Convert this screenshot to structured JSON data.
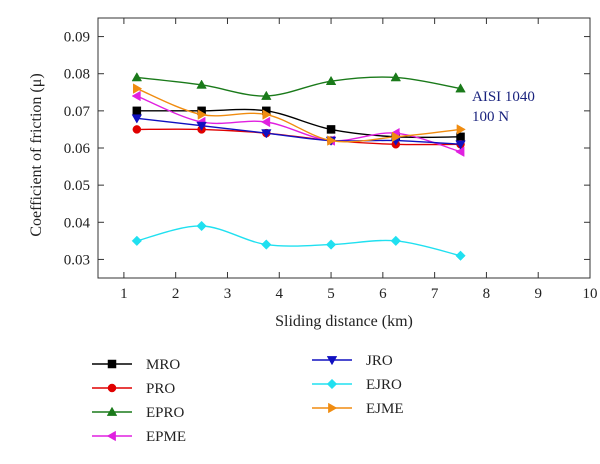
{
  "chart_data": {
    "type": "line",
    "xlabel": "Sliding distance (km)",
    "ylabel": "Coefficient of friction (μ)",
    "xlim": [
      0.5,
      10
    ],
    "ylim": [
      0.025,
      0.095
    ],
    "xticks": [
      1,
      2,
      3,
      4,
      5,
      6,
      7,
      8,
      9,
      10
    ],
    "yticks": [
      0.03,
      0.04,
      0.05,
      0.06,
      0.07,
      0.08,
      0.09
    ],
    "ytick_labels": [
      "0.03",
      "0.04",
      "0.05",
      "0.06",
      "0.07",
      "0.08",
      "0.09"
    ],
    "x": [
      1.25,
      2.5,
      3.75,
      5,
      6.25,
      7.5
    ],
    "series": [
      {
        "name": "MRO",
        "color": "#000000",
        "marker": "square",
        "values": [
          0.07,
          0.07,
          0.07,
          0.065,
          0.063,
          0.063
        ]
      },
      {
        "name": "PRO",
        "color": "#e00000",
        "marker": "circle",
        "values": [
          0.065,
          0.065,
          0.064,
          0.062,
          0.061,
          0.061
        ]
      },
      {
        "name": "EPRO",
        "color": "#1a7a1a",
        "marker": "triangle-up",
        "values": [
          0.079,
          0.077,
          0.074,
          0.078,
          0.079,
          0.076
        ]
      },
      {
        "name": "EPME",
        "color": "#e020e0",
        "marker": "triangle-left",
        "values": [
          0.074,
          0.067,
          0.067,
          0.062,
          0.064,
          0.059
        ]
      },
      {
        "name": "JRO",
        "color": "#1010c0",
        "marker": "triangle-down",
        "values": [
          0.068,
          0.066,
          0.064,
          0.062,
          0.062,
          0.061
        ]
      },
      {
        "name": "EJRO",
        "color": "#20e0f0",
        "marker": "diamond",
        "values": [
          0.035,
          0.039,
          0.034,
          0.034,
          0.035,
          0.031
        ]
      },
      {
        "name": "EJME",
        "color": "#f08c10",
        "marker": "triangle-right",
        "values": [
          0.076,
          0.069,
          0.069,
          0.062,
          0.063,
          0.065
        ]
      }
    ],
    "annotations": [
      "AISI 1040",
      "100 N"
    ],
    "legend_placement": "bottom",
    "grid": false
  }
}
